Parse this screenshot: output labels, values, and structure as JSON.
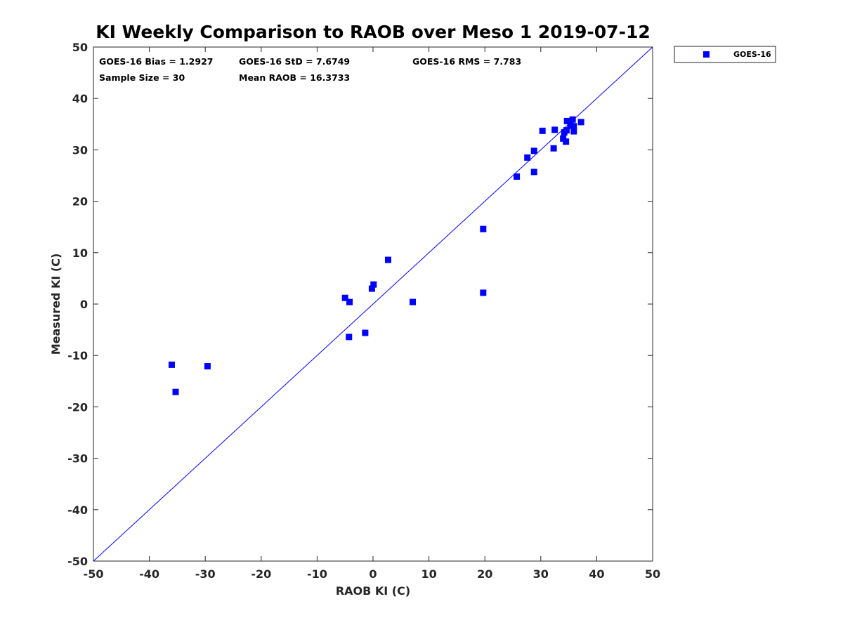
{
  "chart_data": {
    "type": "scatter",
    "title": "KI Weekly Comparison to RAOB over Meso 1 2019-07-12",
    "xlabel": "RAOB KI (C)",
    "ylabel": "Measured KI (C)",
    "xlim": [
      -50,
      50
    ],
    "ylim": [
      -50,
      50
    ],
    "xticks": [
      -50,
      -40,
      -30,
      -20,
      -10,
      0,
      10,
      20,
      30,
      40,
      50
    ],
    "yticks": [
      -50,
      -40,
      -30,
      -20,
      -10,
      0,
      10,
      20,
      30,
      40,
      50
    ],
    "grid": false,
    "legend": {
      "position": "outside-top-right",
      "entries": [
        "GOES-16"
      ]
    },
    "series": [
      {
        "name": "GOES-16",
        "color": "#0000ff",
        "marker": "square",
        "points": [
          [
            -36.0,
            -11.8
          ],
          [
            -35.3,
            -17.1
          ],
          [
            -29.6,
            -12.1
          ],
          [
            -5.0,
            1.2
          ],
          [
            -4.2,
            0.4
          ],
          [
            -4.3,
            -6.4
          ],
          [
            -1.4,
            -5.6
          ],
          [
            -0.2,
            3.0
          ],
          [
            0.1,
            3.8
          ],
          [
            2.7,
            8.6
          ],
          [
            7.1,
            0.4
          ],
          [
            19.7,
            14.6
          ],
          [
            19.7,
            2.2
          ],
          [
            25.7,
            24.8
          ],
          [
            27.6,
            28.5
          ],
          [
            28.8,
            29.8
          ],
          [
            28.8,
            25.7
          ],
          [
            30.3,
            33.7
          ],
          [
            32.3,
            30.3
          ],
          [
            32.5,
            33.9
          ],
          [
            34.0,
            32.2
          ],
          [
            34.2,
            33.4
          ],
          [
            34.5,
            31.6
          ],
          [
            34.6,
            33.8
          ],
          [
            34.7,
            35.6
          ],
          [
            35.3,
            34.7
          ],
          [
            35.7,
            35.9
          ],
          [
            35.9,
            34.6
          ],
          [
            35.9,
            33.6
          ],
          [
            37.2,
            35.4
          ]
        ]
      },
      {
        "name": "1:1 line",
        "color": "#0000ff",
        "line": [
          [
            -50,
            -50
          ],
          [
            50,
            50
          ]
        ]
      }
    ],
    "stats": {
      "bias": "GOES-16 Bias = 1.2927",
      "std": "GOES-16 StD = 7.6749",
      "rms": "GOES-16 RMS = 7.783",
      "sample": "Sample Size = 30",
      "mean": "Mean RAOB = 16.3733"
    }
  }
}
